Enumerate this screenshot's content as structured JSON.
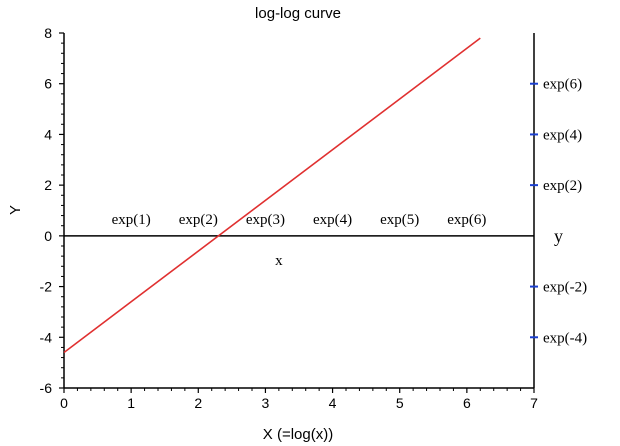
{
  "chart_data": {
    "type": "line",
    "title": "log-log curve",
    "xlabel": "X  (=log(x))",
    "ylabel": "Y",
    "xlim": [
      0,
      7
    ],
    "ylim": [
      -6,
      8
    ],
    "xticks": [
      "0",
      "1",
      "2",
      "3",
      "4",
      "5",
      "6",
      "7"
    ],
    "yticks": [
      "-6",
      "-4",
      "-2",
      "0",
      "2",
      "4",
      "6",
      "8"
    ],
    "series": [
      {
        "x": [
          0,
          6.2
        ],
        "y": [
          -4.6,
          7.8
        ],
        "color": "#e03030"
      }
    ],
    "secondary_x_axis": {
      "label": "x",
      "ticks": [
        {
          "x": 1,
          "label": "exp(1)"
        },
        {
          "x": 2,
          "label": "exp(2)"
        },
        {
          "x": 3,
          "label": "exp(3)"
        },
        {
          "x": 4,
          "label": "exp(4)"
        },
        {
          "x": 5,
          "label": "exp(5)"
        },
        {
          "x": 6,
          "label": "exp(6)"
        }
      ]
    },
    "secondary_y_axis": {
      "label": "y",
      "tick_color": "#1a3fd0",
      "ticks": [
        {
          "y": 6,
          "label": "exp(6)"
        },
        {
          "y": 4,
          "label": "exp(4)"
        },
        {
          "y": 2,
          "label": "exp(2)"
        },
        {
          "y": -2,
          "label": "exp(-2)"
        },
        {
          "y": -4,
          "label": "exp(-4)"
        }
      ]
    },
    "grid": false
  }
}
